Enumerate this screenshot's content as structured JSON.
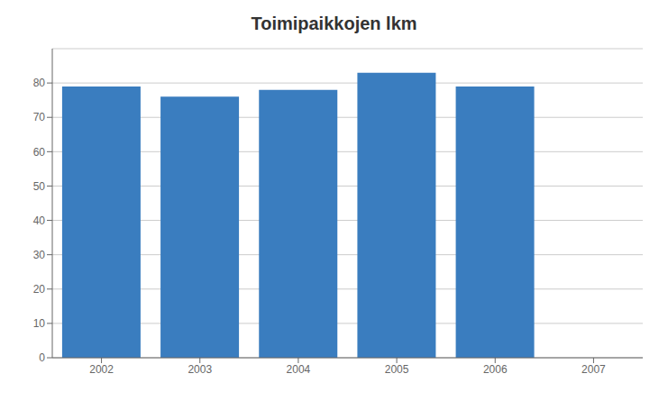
{
  "chart_data": {
    "type": "bar",
    "title": "Toimipaikkojen lkm",
    "categories": [
      "2002",
      "2003",
      "2004",
      "2005",
      "2006",
      "2007"
    ],
    "values": [
      79,
      76,
      78,
      83,
      79,
      0
    ],
    "color": "#3A7DBF",
    "ylim": [
      0,
      90
    ],
    "yticks": [
      0,
      10,
      20,
      30,
      40,
      50,
      60,
      70,
      80
    ],
    "grid": true
  }
}
